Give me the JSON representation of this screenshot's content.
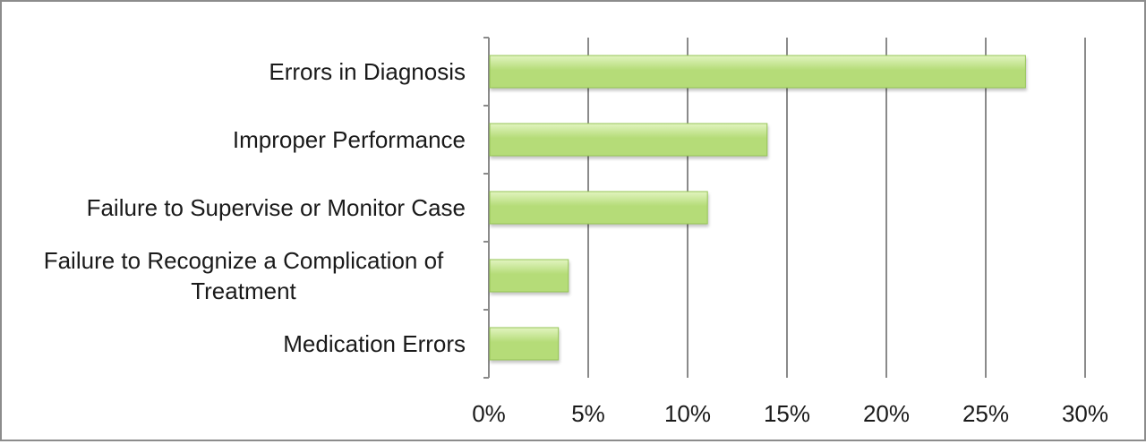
{
  "chart_data": {
    "type": "bar",
    "orientation": "horizontal",
    "categories": [
      "Errors in Diagnosis",
      "Improper Performance",
      "Failure to Supervise or Monitor Case",
      "Failure to Recognize a Complication of Treatment",
      "Medication Errors"
    ],
    "category_lines": [
      [
        "Errors in Diagnosis"
      ],
      [
        "Improper Performance"
      ],
      [
        "Failure to Supervise or Monitor Case"
      ],
      [
        "Failure to Recognize a Complication of",
        "Treatment"
      ],
      [
        "Medication Errors"
      ]
    ],
    "values": [
      27,
      14,
      11,
      4,
      3.5
    ],
    "xlim": [
      0,
      30
    ],
    "x_ticks": [
      0,
      5,
      10,
      15,
      20,
      25,
      30
    ],
    "x_tick_labels": [
      "0%",
      "5%",
      "10%",
      "15%",
      "20%",
      "25%",
      "30%"
    ],
    "title": "",
    "xlabel": "",
    "ylabel": "",
    "grid": "vertical",
    "legend": "none",
    "bar_color": "#b5dc78",
    "bar_gradient_top": "#e2f4c0",
    "bar_edge_color": "#95c455",
    "grid_color": "#8a8a8a",
    "axis_color": "#8a8a8a"
  }
}
